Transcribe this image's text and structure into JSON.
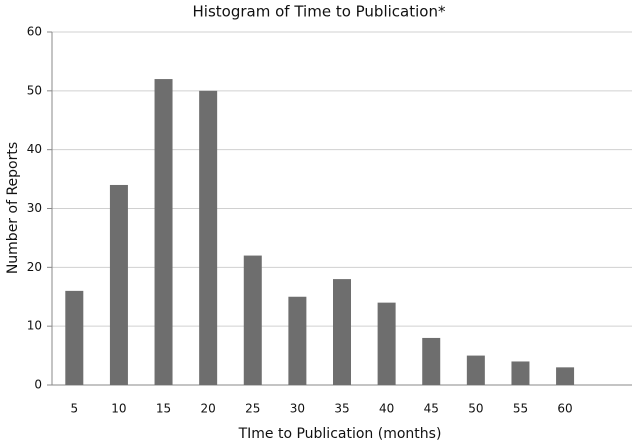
{
  "chart_data": {
    "type": "bar",
    "title": "Histogram of Time to Publication*",
    "x_label": "TIme to Publication (months)",
    "y_label": "Number of  Reports",
    "categories": [
      "5",
      "10",
      "15",
      "20",
      "25",
      "30",
      "35",
      "40",
      "45",
      "50",
      "55",
      "60",
      null
    ],
    "values": [
      16,
      34,
      52,
      50,
      22,
      15,
      18,
      14,
      8,
      5,
      4,
      3,
      null
    ],
    "color": "#6e6e6e",
    "ylim": [
      0,
      60
    ],
    "yticks": [
      0,
      10,
      20,
      30,
      40,
      50,
      60
    ],
    "grid": true
  }
}
